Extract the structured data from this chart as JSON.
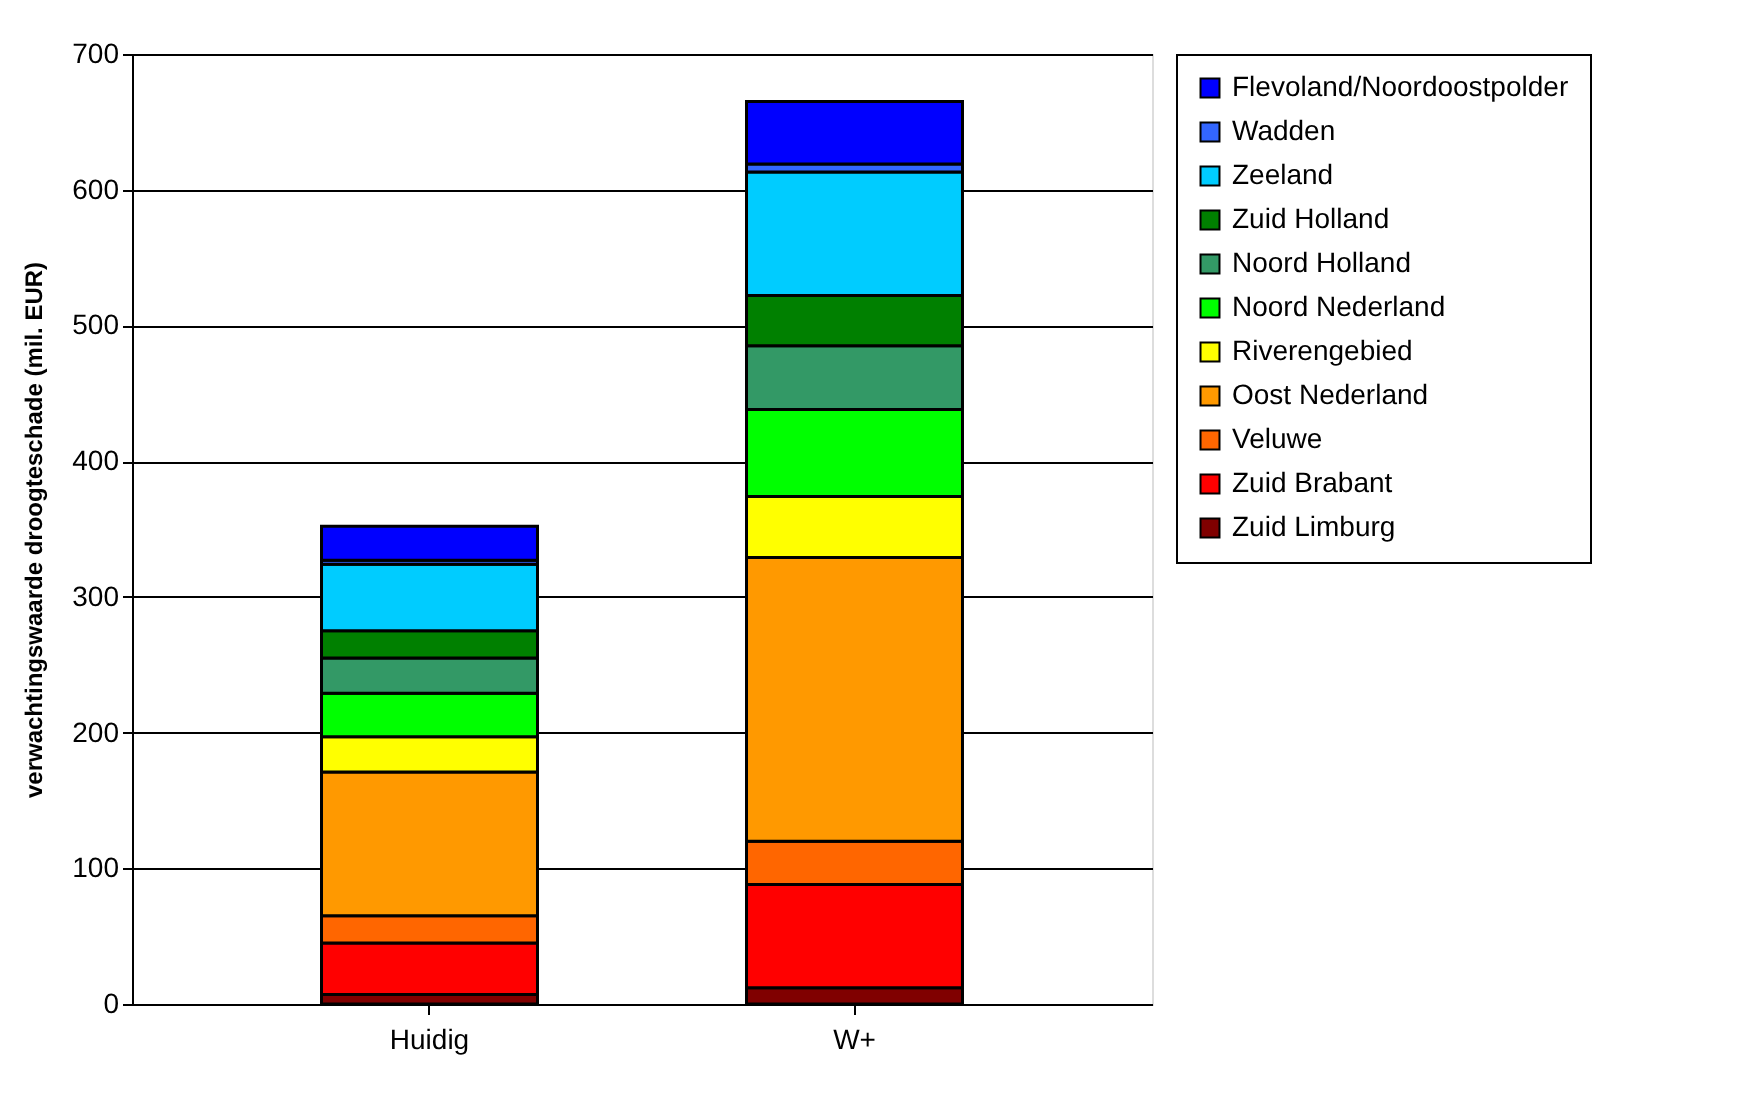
{
  "chart_data": {
    "type": "bar",
    "stacked": true,
    "ylabel": "verwachtingswaarde droogteschade (mil. EUR)",
    "categories": [
      "Huidig",
      "W+"
    ],
    "series": [
      {
        "name": "Zuid Limburg",
        "color": "#800000",
        "values": [
          7,
          12
        ]
      },
      {
        "name": "Zuid Brabant",
        "color": "#ff0000",
        "values": [
          38,
          76
        ]
      },
      {
        "name": "Veluwe",
        "color": "#ff6600",
        "values": [
          20,
          32
        ]
      },
      {
        "name": "Oost Nederland",
        "color": "#ff9900",
        "values": [
          106,
          209
        ]
      },
      {
        "name": "Riverengebied",
        "color": "#ffff00",
        "values": [
          26,
          45
        ]
      },
      {
        "name": "Noord Nederland",
        "color": "#00ff00",
        "values": [
          32,
          64
        ]
      },
      {
        "name": "Noord Holland",
        "color": "#339966",
        "values": [
          26,
          47
        ]
      },
      {
        "name": "Zuid Holland",
        "color": "#008000",
        "values": [
          20,
          37
        ]
      },
      {
        "name": "Zeeland",
        "color": "#00ccff",
        "values": [
          49,
          91
        ]
      },
      {
        "name": "Wadden",
        "color": "#3366ff",
        "values": [
          3,
          6
        ]
      },
      {
        "name": "Flevoland/Noordoostpolder",
        "color": "#0000ff",
        "values": [
          25,
          46
        ]
      }
    ],
    "ylim": [
      0,
      700
    ],
    "yticks": [
      0,
      100,
      200,
      300,
      400,
      500,
      600,
      700
    ],
    "grid": "y",
    "legend": "right"
  }
}
